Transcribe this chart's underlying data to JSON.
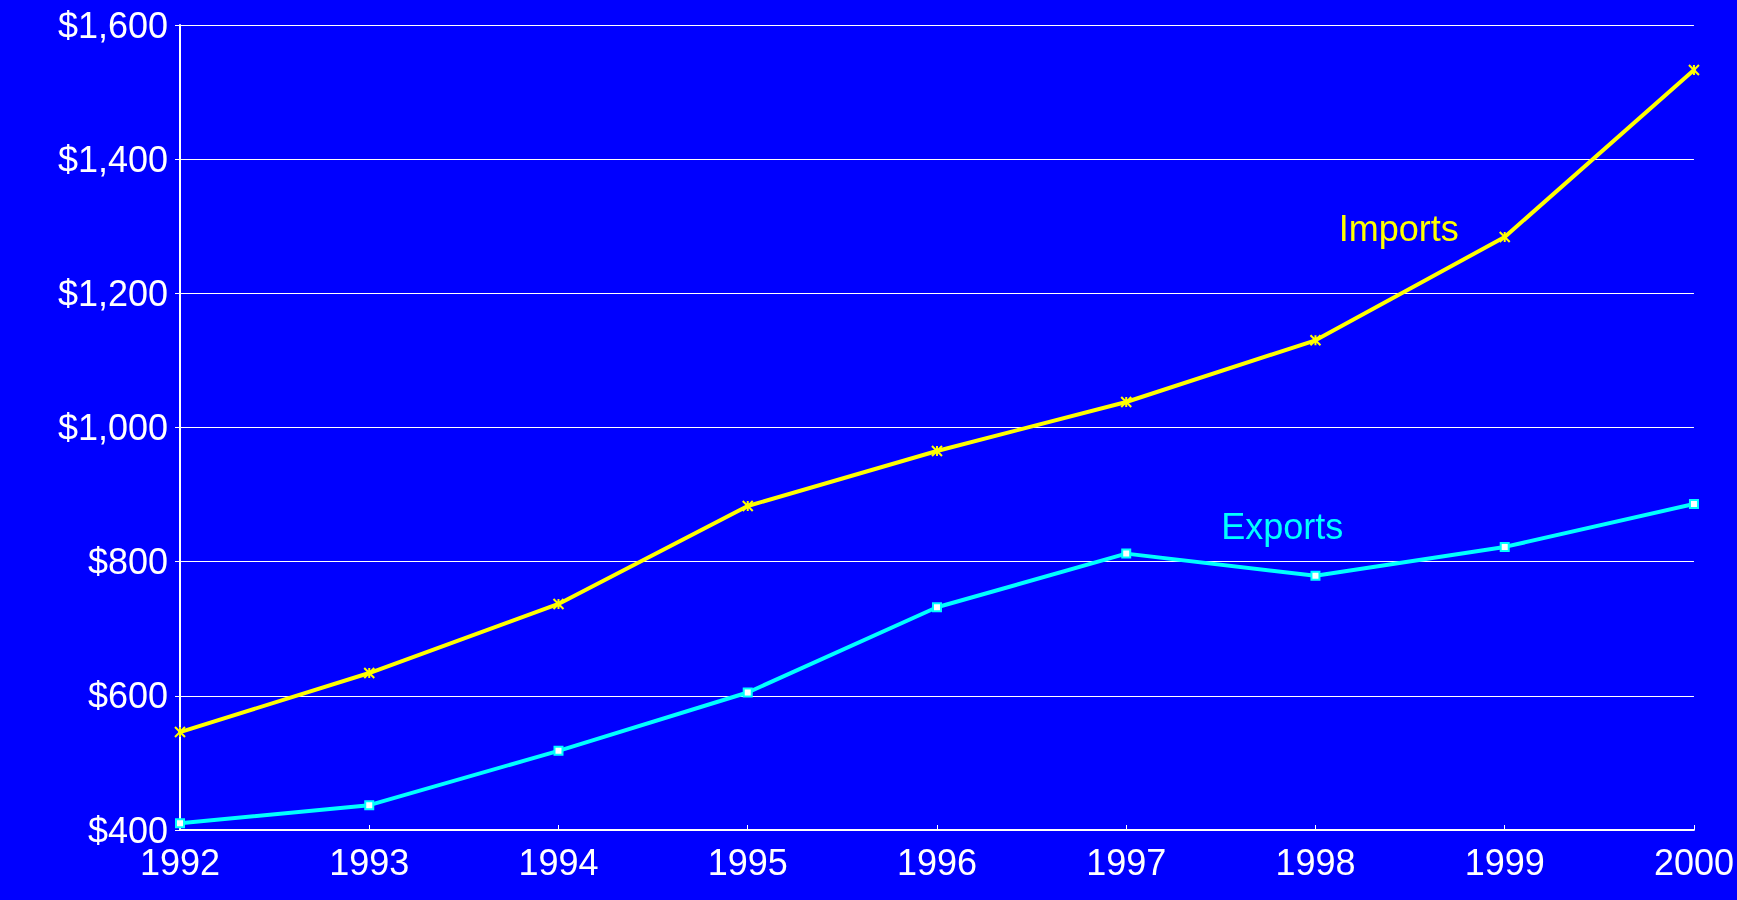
{
  "chart_data": {
    "type": "line",
    "categories": [
      "1992",
      "1993",
      "1994",
      "1995",
      "1996",
      "1997",
      "1998",
      "1999",
      "2000"
    ],
    "series": [
      {
        "name": "Imports",
        "color": "#ffff00",
        "marker": "cross",
        "values": [
          546,
          634,
          737,
          883,
          965,
          1038,
          1130,
          1284,
          1533
        ]
      },
      {
        "name": "Exports",
        "color": "#00ffff",
        "marker": "square",
        "values": [
          410,
          437,
          518,
          605,
          732,
          812,
          779,
          822,
          886
        ]
      }
    ],
    "ylim": [
      400,
      1600
    ],
    "yticks": [
      {
        "value": 400,
        "label": "$400"
      },
      {
        "value": 600,
        "label": "$600"
      },
      {
        "value": 800,
        "label": "$800"
      },
      {
        "value": 1000,
        "label": "$1,000"
      },
      {
        "value": 1200,
        "label": "$1,200"
      },
      {
        "value": 1400,
        "label": "$1,400"
      },
      {
        "value": 1600,
        "label": "$1,600"
      }
    ],
    "grid": "y",
    "legend": false,
    "line_style": "solid"
  }
}
